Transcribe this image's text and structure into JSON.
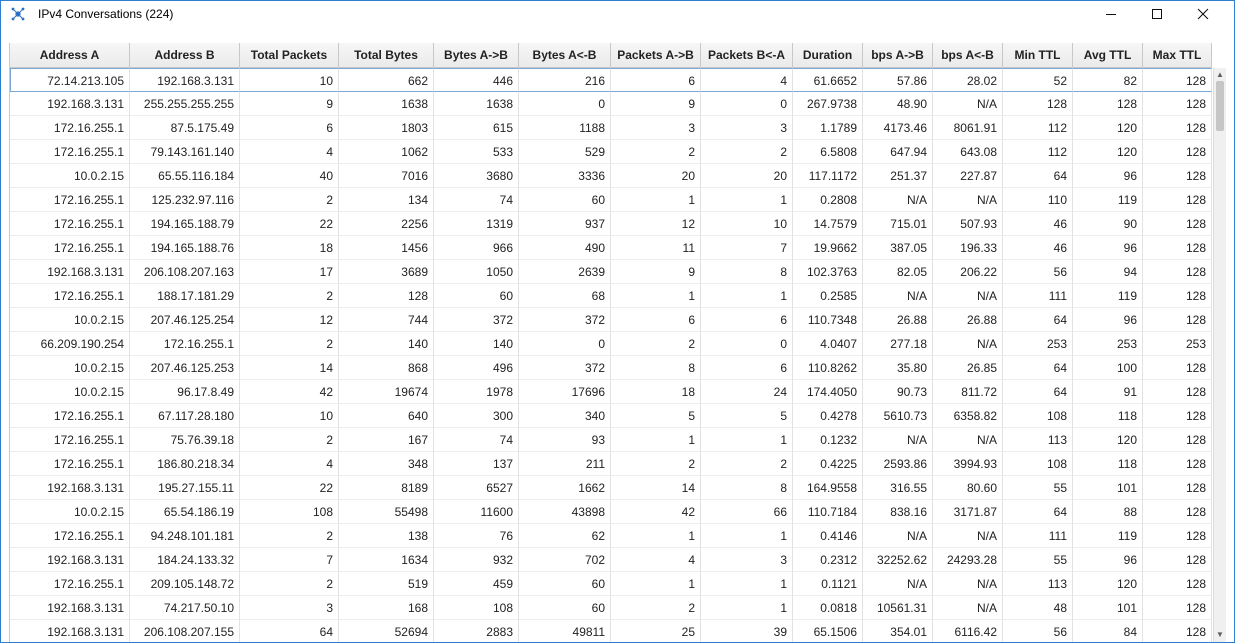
{
  "window": {
    "title": "IPv4 Conversations (224)",
    "icon": "network-icon",
    "controls": {
      "minimize_icon": "minimize-icon",
      "maximize_icon": "maximize-icon",
      "close_icon": "close-icon"
    }
  },
  "table": {
    "columns": [
      "Address A",
      "Address B",
      "Total Packets",
      "Total Bytes",
      "Bytes A->B",
      "Bytes A<-B",
      "Packets A->B",
      "Packets B<-A",
      "Duration",
      "bps A->B",
      "bps A<-B",
      "Min TTL",
      "Avg TTL",
      "Max TTL"
    ],
    "selected_row": 0,
    "rows": [
      [
        "72.14.213.105",
        "192.168.3.131",
        "10",
        "662",
        "446",
        "216",
        "6",
        "4",
        "61.6652",
        "57.86",
        "28.02",
        "52",
        "82",
        "128"
      ],
      [
        "192.168.3.131",
        "255.255.255.255",
        "9",
        "1638",
        "1638",
        "0",
        "9",
        "0",
        "267.9738",
        "48.90",
        "N/A",
        "128",
        "128",
        "128"
      ],
      [
        "172.16.255.1",
        "87.5.175.49",
        "6",
        "1803",
        "615",
        "1188",
        "3",
        "3",
        "1.1789",
        "4173.46",
        "8061.91",
        "112",
        "120",
        "128"
      ],
      [
        "172.16.255.1",
        "79.143.161.140",
        "4",
        "1062",
        "533",
        "529",
        "2",
        "2",
        "6.5808",
        "647.94",
        "643.08",
        "112",
        "120",
        "128"
      ],
      [
        "10.0.2.15",
        "65.55.116.184",
        "40",
        "7016",
        "3680",
        "3336",
        "20",
        "20",
        "117.1172",
        "251.37",
        "227.87",
        "64",
        "96",
        "128"
      ],
      [
        "172.16.255.1",
        "125.232.97.116",
        "2",
        "134",
        "74",
        "60",
        "1",
        "1",
        "0.2808",
        "N/A",
        "N/A",
        "110",
        "119",
        "128"
      ],
      [
        "172.16.255.1",
        "194.165.188.79",
        "22",
        "2256",
        "1319",
        "937",
        "12",
        "10",
        "14.7579",
        "715.01",
        "507.93",
        "46",
        "90",
        "128"
      ],
      [
        "172.16.255.1",
        "194.165.188.76",
        "18",
        "1456",
        "966",
        "490",
        "11",
        "7",
        "19.9662",
        "387.05",
        "196.33",
        "46",
        "96",
        "128"
      ],
      [
        "192.168.3.131",
        "206.108.207.163",
        "17",
        "3689",
        "1050",
        "2639",
        "9",
        "8",
        "102.3763",
        "82.05",
        "206.22",
        "56",
        "94",
        "128"
      ],
      [
        "172.16.255.1",
        "188.17.181.29",
        "2",
        "128",
        "60",
        "68",
        "1",
        "1",
        "0.2585",
        "N/A",
        "N/A",
        "111",
        "119",
        "128"
      ],
      [
        "10.0.2.15",
        "207.46.125.254",
        "12",
        "744",
        "372",
        "372",
        "6",
        "6",
        "110.7348",
        "26.88",
        "26.88",
        "64",
        "96",
        "128"
      ],
      [
        "66.209.190.254",
        "172.16.255.1",
        "2",
        "140",
        "140",
        "0",
        "2",
        "0",
        "4.0407",
        "277.18",
        "N/A",
        "253",
        "253",
        "253"
      ],
      [
        "10.0.2.15",
        "207.46.125.253",
        "14",
        "868",
        "496",
        "372",
        "8",
        "6",
        "110.8262",
        "35.80",
        "26.85",
        "64",
        "100",
        "128"
      ],
      [
        "10.0.2.15",
        "96.17.8.49",
        "42",
        "19674",
        "1978",
        "17696",
        "18",
        "24",
        "174.4050",
        "90.73",
        "811.72",
        "64",
        "91",
        "128"
      ],
      [
        "172.16.255.1",
        "67.117.28.180",
        "10",
        "640",
        "300",
        "340",
        "5",
        "5",
        "0.4278",
        "5610.73",
        "6358.82",
        "108",
        "118",
        "128"
      ],
      [
        "172.16.255.1",
        "75.76.39.18",
        "2",
        "167",
        "74",
        "93",
        "1",
        "1",
        "0.1232",
        "N/A",
        "N/A",
        "113",
        "120",
        "128"
      ],
      [
        "172.16.255.1",
        "186.80.218.34",
        "4",
        "348",
        "137",
        "211",
        "2",
        "2",
        "0.4225",
        "2593.86",
        "3994.93",
        "108",
        "118",
        "128"
      ],
      [
        "192.168.3.131",
        "195.27.155.11",
        "22",
        "8189",
        "6527",
        "1662",
        "14",
        "8",
        "164.9558",
        "316.55",
        "80.60",
        "55",
        "101",
        "128"
      ],
      [
        "10.0.2.15",
        "65.54.186.19",
        "108",
        "55498",
        "11600",
        "43898",
        "42",
        "66",
        "110.7184",
        "838.16",
        "3171.87",
        "64",
        "88",
        "128"
      ],
      [
        "172.16.255.1",
        "94.248.101.181",
        "2",
        "138",
        "76",
        "62",
        "1",
        "1",
        "0.4146",
        "N/A",
        "N/A",
        "111",
        "119",
        "128"
      ],
      [
        "192.168.3.131",
        "184.24.133.32",
        "7",
        "1634",
        "932",
        "702",
        "4",
        "3",
        "0.2312",
        "32252.62",
        "24293.28",
        "55",
        "96",
        "128"
      ],
      [
        "172.16.255.1",
        "209.105.148.72",
        "2",
        "519",
        "459",
        "60",
        "1",
        "1",
        "0.1121",
        "N/A",
        "N/A",
        "113",
        "120",
        "128"
      ],
      [
        "192.168.3.131",
        "74.217.50.10",
        "3",
        "168",
        "108",
        "60",
        "2",
        "1",
        "0.0818",
        "10561.31",
        "N/A",
        "48",
        "101",
        "128"
      ],
      [
        "192.168.3.131",
        "206.108.207.155",
        "64",
        "52694",
        "2883",
        "49811",
        "25",
        "39",
        "65.1506",
        "354.01",
        "6116.42",
        "56",
        "84",
        "128"
      ]
    ]
  },
  "scrollbar": {
    "up_icon": "scroll-up-icon",
    "down_icon": "scroll-down-icon"
  }
}
